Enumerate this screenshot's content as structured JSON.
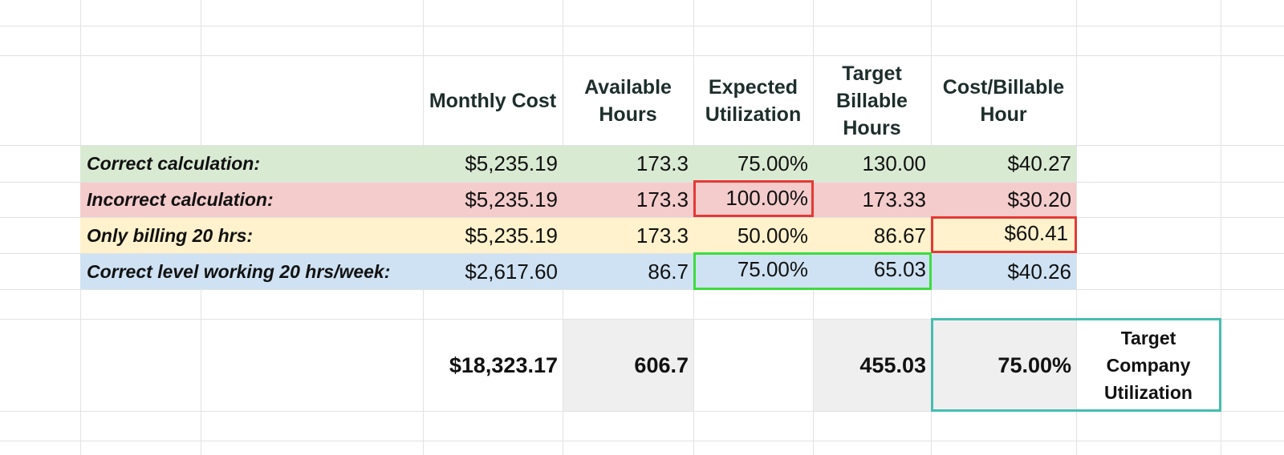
{
  "headers": {
    "monthly_cost": "Monthly Cost",
    "available_hours": "Available Hours",
    "expected_utilization": "Expected Utilization",
    "target_billable_hours": "Target Billable Hours",
    "cost_per_billable_hour": "Cost/Billable Hour"
  },
  "rows": [
    {
      "label": "Correct calculation:",
      "monthly_cost": "$5,235.19",
      "available_hours": "173.3",
      "expected_utilization": "75.00%",
      "target_billable_hours": "130.00",
      "cost_per_billable_hour": "$40.27",
      "color": "#d9ead3"
    },
    {
      "label": "Incorrect calculation:",
      "monthly_cost": "$5,235.19",
      "available_hours": "173.3",
      "expected_utilization": "100.00%",
      "target_billable_hours": "173.33",
      "cost_per_billable_hour": "$30.20",
      "color": "#f4cccc"
    },
    {
      "label": "Only billing 20 hrs:",
      "monthly_cost": "$5,235.19",
      "available_hours": "173.3",
      "expected_utilization": "50.00%",
      "target_billable_hours": "86.67",
      "cost_per_billable_hour": "$60.41",
      "color": "#fff2cc"
    },
    {
      "label": "Correct level working 20 hrs/week:",
      "monthly_cost": "$2,617.60",
      "available_hours": "86.7",
      "expected_utilization": "75.00%",
      "target_billable_hours": "65.03",
      "cost_per_billable_hour": "$40.26",
      "color": "#cfe2f3"
    }
  ],
  "totals": {
    "monthly_cost": "$18,323.17",
    "available_hours": "606.7",
    "target_billable_hours": "455.03",
    "company_utilization": "75.00%",
    "note": "Target Company Utilization"
  },
  "colors": {
    "highlight_red": "#e53935",
    "highlight_green": "#3ddc3d",
    "highlight_teal": "#46bdb0",
    "total_fill": "#efefef"
  }
}
